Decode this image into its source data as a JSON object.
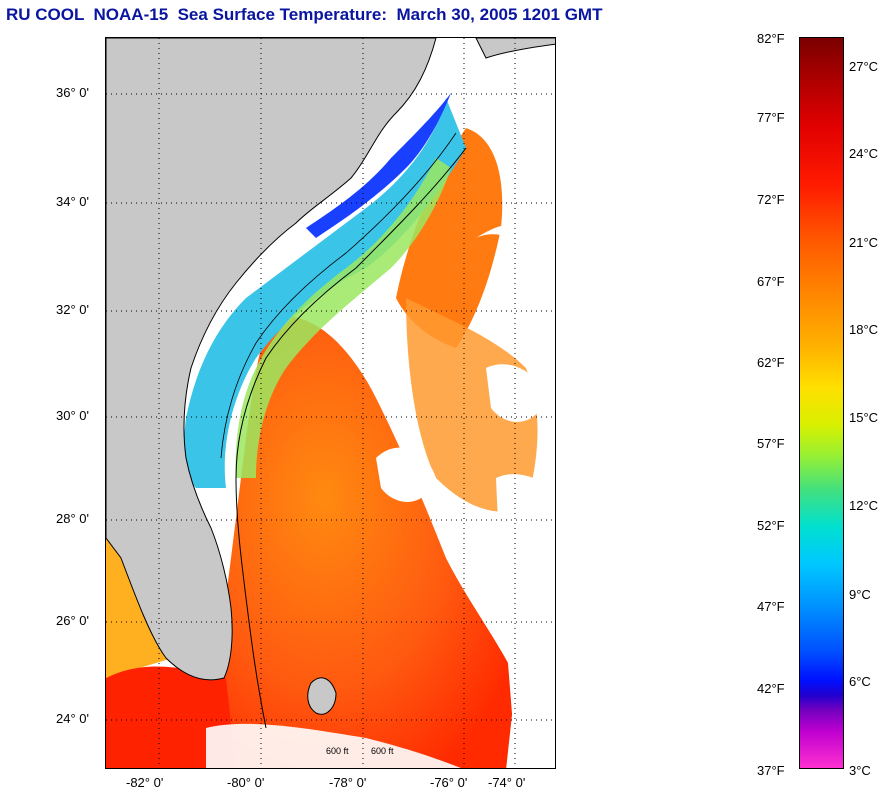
{
  "title": "RU COOL  NOAA-15  Sea Surface Temperature:  March 30, 2005 1201 GMT",
  "map": {
    "lat_labels": [
      "36° 0'",
      "34° 0'",
      "32° 0'",
      "30° 0'",
      "28° 0'",
      "26° 0'",
      "24° 0'"
    ],
    "lon_labels": [
      "-82° 0'",
      "-80° 0'",
      "-78° 0'",
      "-76° 0'",
      "-74° 0'"
    ],
    "contour_labels": [
      "600 ft",
      "600 ft"
    ],
    "colors": {
      "land": "#c8c8c8",
      "cloud": "#ffffff",
      "grid": "#000000"
    }
  },
  "colorbar": {
    "fahrenheit": [
      "82°F",
      "77°F",
      "72°F",
      "67°F",
      "62°F",
      "57°F",
      "52°F",
      "47°F",
      "42°F",
      "37°F"
    ],
    "celsius": [
      "27°C",
      "24°C",
      "21°C",
      "18°C",
      "15°C",
      "12°C",
      "9°C",
      "6°C",
      "3°C"
    ]
  }
}
